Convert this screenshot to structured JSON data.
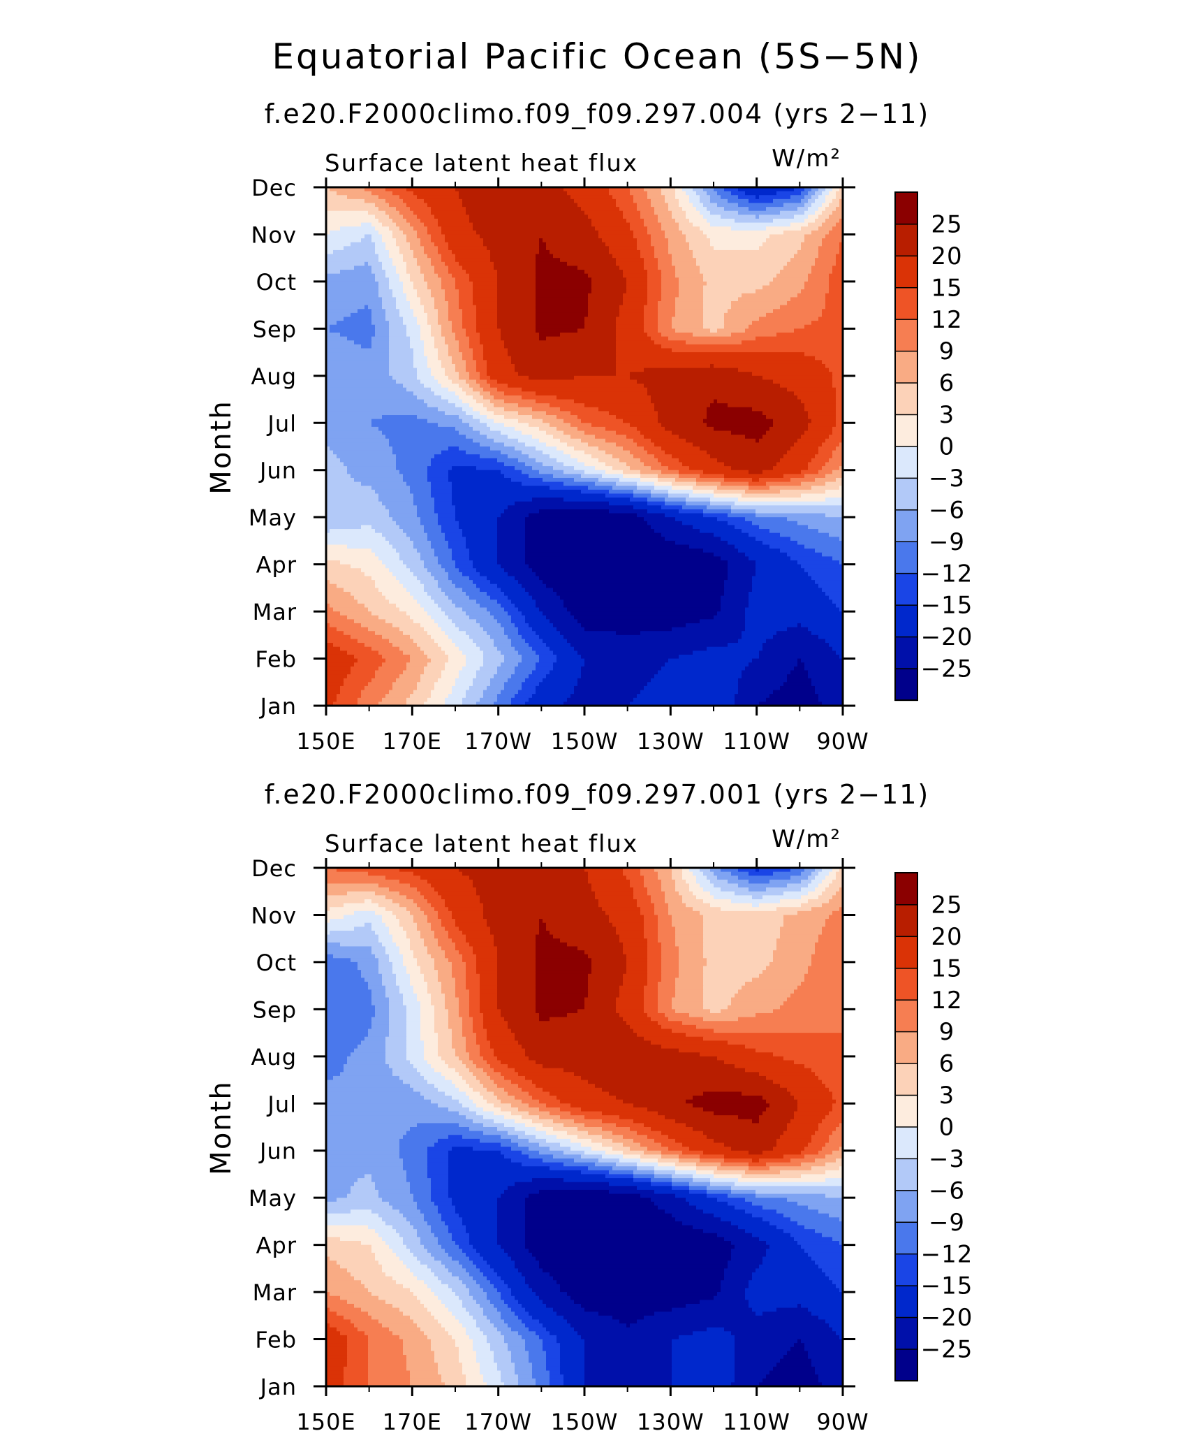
{
  "figure": {
    "title": "Equatorial Pacific Ocean (5S−5N)"
  },
  "chart_data": [
    {
      "type": "heatmap",
      "title": "f.e20.F2000climo.f09_f09.297.004 (yrs 2−11)",
      "left_label": "Surface latent heat flux",
      "units": "W/m²",
      "ylabel": "Month",
      "x_ticks": [
        "150E",
        "170E",
        "170W",
        "150W",
        "130W",
        "110W",
        "90W"
      ],
      "y_ticks": [
        "Jan",
        "Feb",
        "Mar",
        "Apr",
        "May",
        "Jun",
        "Jul",
        "Aug",
        "Sep",
        "Oct",
        "Nov",
        "Dec"
      ],
      "lon_grid_degE": [
        150,
        160,
        170,
        180,
        190,
        200,
        210,
        220,
        230,
        240,
        250,
        260,
        270
      ],
      "values": [
        [
          16,
          10,
          5,
          -2,
          -10,
          -18,
          -22,
          -20,
          -18,
          -15,
          -25,
          -28,
          -22
        ],
        [
          18,
          14,
          9,
          2,
          -5,
          -12,
          -20,
          -22,
          -20,
          -18,
          -20,
          -25,
          -20
        ],
        [
          10,
          6,
          2,
          -5,
          -10,
          -20,
          -28,
          -28,
          -28,
          -26,
          -18,
          -18,
          -15
        ],
        [
          4,
          2,
          -4,
          -12,
          -20,
          -28,
          -30,
          -30,
          -30,
          -28,
          -20,
          -15,
          -12
        ],
        [
          -6,
          -4,
          -8,
          -15,
          -20,
          -28,
          -30,
          -28,
          -20,
          -15,
          -10,
          -8,
          -6
        ],
        [
          -5,
          -7,
          -10,
          -16,
          -15,
          -8,
          -2,
          5,
          12,
          18,
          22,
          16,
          8
        ],
        [
          -7,
          -9,
          -10,
          -8,
          0,
          5,
          12,
          15,
          22,
          26,
          27,
          22,
          14
        ],
        [
          -6,
          -8,
          -4,
          5,
          18,
          22,
          20,
          20,
          22,
          24,
          20,
          18,
          14
        ],
        [
          -9,
          -10,
          -2,
          10,
          20,
          26,
          25,
          18,
          9,
          5,
          10,
          12,
          13
        ],
        [
          -7,
          -8,
          3,
          12,
          20,
          26,
          26,
          20,
          10,
          5,
          5,
          8,
          14
        ],
        [
          0,
          -3,
          8,
          18,
          22,
          25,
          22,
          16,
          8,
          2,
          2,
          5,
          12
        ],
        [
          6,
          10,
          16,
          20,
          24,
          22,
          18,
          12,
          4,
          -10,
          -20,
          -15,
          5
        ]
      ],
      "color_levels": [
        -25,
        -20,
        -15,
        -12,
        -9,
        -6,
        -3,
        0,
        3,
        6,
        9,
        12,
        15,
        20,
        25
      ],
      "colors": [
        "#00008b",
        "#0010aa",
        "#0028cc",
        "#1a45e6",
        "#4a78ec",
        "#7fa3f2",
        "#b2c9f8",
        "#dbe8fc",
        "#fdecde",
        "#fcd2b8",
        "#f9ab84",
        "#f67e52",
        "#ee5426",
        "#da3306",
        "#b81e00",
        "#8b0000"
      ]
    },
    {
      "type": "heatmap",
      "title": "f.e20.F2000climo.f09_f09.297.001 (yrs 2−11)",
      "left_label": "Surface latent heat flux",
      "units": "W/m²",
      "ylabel": "Month",
      "x_ticks": [
        "150E",
        "170E",
        "170W",
        "150W",
        "130W",
        "110W",
        "90W"
      ],
      "y_ticks": [
        "Jan",
        "Feb",
        "Mar",
        "Apr",
        "May",
        "Jun",
        "Jul",
        "Aug",
        "Sep",
        "Oct",
        "Nov",
        "Dec"
      ],
      "lon_grid_degE": [
        150,
        160,
        170,
        180,
        190,
        200,
        210,
        220,
        230,
        240,
        250,
        260,
        270
      ],
      "values": [
        [
          17,
          12,
          9,
          5,
          -2,
          -10,
          -20,
          -22,
          -20,
          -16,
          -25,
          -28,
          -22
        ],
        [
          18,
          12,
          8,
          3,
          -5,
          -12,
          -20,
          -24,
          -20,
          -18,
          -22,
          -25,
          -20
        ],
        [
          9,
          6,
          3,
          -3,
          -12,
          -22,
          -28,
          -28,
          -28,
          -26,
          -18,
          -18,
          -15
        ],
        [
          5,
          3,
          -4,
          -12,
          -20,
          -28,
          -30,
          -30,
          -30,
          -28,
          -22,
          -15,
          -12
        ],
        [
          -7,
          -5,
          -9,
          -16,
          -20,
          -28,
          -30,
          -28,
          -22,
          -15,
          -10,
          -8,
          -6
        ],
        [
          -6,
          -7,
          -10,
          -16,
          -15,
          -8,
          -2,
          5,
          12,
          18,
          22,
          16,
          8
        ],
        [
          -8,
          -9,
          -8,
          -4,
          5,
          12,
          18,
          20,
          24,
          27,
          27,
          20,
          14
        ],
        [
          -10,
          -8,
          -2,
          6,
          16,
          22,
          22,
          24,
          22,
          20,
          16,
          14,
          12
        ],
        [
          -12,
          -10,
          -2,
          8,
          20,
          26,
          25,
          18,
          9,
          5,
          8,
          10,
          12
        ],
        [
          -11,
          -8,
          2,
          10,
          20,
          26,
          26,
          20,
          10,
          5,
          5,
          8,
          12
        ],
        [
          2,
          -2,
          6,
          16,
          22,
          25,
          22,
          18,
          9,
          5,
          4,
          7,
          10
        ],
        [
          12,
          14,
          16,
          20,
          22,
          22,
          20,
          14,
          6,
          -8,
          -16,
          -12,
          4
        ]
      ],
      "color_levels": [
        -25,
        -20,
        -15,
        -12,
        -9,
        -6,
        -3,
        0,
        3,
        6,
        9,
        12,
        15,
        20,
        25
      ],
      "colors": [
        "#00008b",
        "#0010aa",
        "#0028cc",
        "#1a45e6",
        "#4a78ec",
        "#7fa3f2",
        "#b2c9f8",
        "#dbe8fc",
        "#fdecde",
        "#fcd2b8",
        "#f9ab84",
        "#f67e52",
        "#ee5426",
        "#da3306",
        "#b81e00",
        "#8b0000"
      ]
    }
  ]
}
